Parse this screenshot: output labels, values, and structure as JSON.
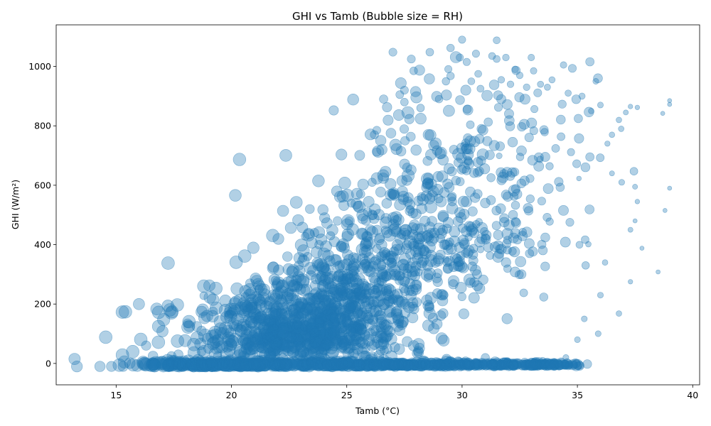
{
  "chart_data": {
    "type": "scatter",
    "title": "GHI vs Tamb (Bubble size = RH)",
    "xlabel": "Tamb (°C)",
    "ylabel": "GHI (W/m²)",
    "xlim": [
      12.4,
      40.3
    ],
    "ylim": [
      -72,
      1140
    ],
    "xticks": [
      15,
      20,
      25,
      30,
      35,
      40
    ],
    "yticks": [
      0,
      200,
      400,
      600,
      800,
      1000
    ],
    "grid": false,
    "legend": "none",
    "color": "#1f77b4",
    "point_opacity": 0.35,
    "size_encoding": "RH (relative humidity); larger bubbles = higher RH",
    "points_shown": 2400,
    "points": [
      [
        13.2,
        15,
        72
      ],
      [
        13.3,
        -10,
        68
      ],
      [
        14.3,
        -10,
        60
      ],
      [
        14.8,
        -10,
        58
      ],
      [
        15.3,
        -10,
        56
      ],
      [
        16.3,
        60,
        50
      ],
      [
        16.6,
        25,
        52
      ],
      [
        17.4,
        25,
        45
      ],
      [
        17.7,
        30,
        48
      ],
      [
        18.1,
        135,
        45
      ],
      [
        18.5,
        125,
        52
      ],
      [
        18.7,
        110,
        50
      ],
      [
        18.7,
        40,
        45
      ],
      [
        19.0,
        50,
        50
      ],
      [
        19.2,
        175,
        46
      ],
      [
        19.4,
        25,
        40
      ],
      [
        18.8,
        228,
        35
      ],
      [
        19.9,
        165,
        42
      ],
      [
        20.1,
        180,
        45
      ],
      [
        20.1,
        125,
        46
      ],
      [
        20.3,
        120,
        42
      ],
      [
        20.5,
        75,
        50
      ],
      [
        20.6,
        225,
        40
      ],
      [
        20.8,
        270,
        42
      ],
      [
        21.2,
        250,
        40
      ],
      [
        21.6,
        195,
        42
      ],
      [
        21.9,
        280,
        38
      ],
      [
        22.0,
        195,
        40
      ],
      [
        22.5,
        240,
        42
      ],
      [
        22.9,
        260,
        40
      ],
      [
        23.1,
        355,
        38
      ],
      [
        23.3,
        360,
        40
      ],
      [
        23.4,
        520,
        45
      ],
      [
        23.2,
        428,
        35
      ],
      [
        23.6,
        440,
        42
      ],
      [
        23.8,
        400,
        42
      ],
      [
        24.3,
        430,
        40
      ],
      [
        24.6,
        480,
        42
      ],
      [
        25.1,
        480,
        38
      ],
      [
        25.2,
        540,
        38
      ],
      [
        25.6,
        570,
        40
      ],
      [
        25.9,
        510,
        40
      ],
      [
        26.1,
        610,
        38
      ],
      [
        26.2,
        770,
        38
      ],
      [
        26.3,
        785,
        36
      ],
      [
        26.3,
        712,
        40
      ],
      [
        26.6,
        890,
        40
      ],
      [
        27.0,
        1048,
        36
      ],
      [
        27.3,
        905,
        35
      ],
      [
        27.5,
        920,
        36
      ],
      [
        27.5,
        880,
        34
      ],
      [
        27.8,
        1025,
        36
      ],
      [
        27.9,
        985,
        34
      ],
      [
        28.2,
        860,
        34
      ],
      [
        28.6,
        1048,
        34
      ],
      [
        29.0,
        890,
        32
      ],
      [
        29.3,
        950,
        32
      ],
      [
        29.5,
        1062,
        32
      ],
      [
        29.5,
        968,
        32
      ],
      [
        29.9,
        1030,
        30
      ],
      [
        30.0,
        1090,
        30
      ],
      [
        30.2,
        1015,
        30
      ],
      [
        30.4,
        950,
        28
      ],
      [
        30.6,
        1043,
        30
      ],
      [
        30.7,
        975,
        28
      ],
      [
        30.8,
        925,
        28
      ],
      [
        31.3,
        1035,
        28
      ],
      [
        31.5,
        1088,
        28
      ],
      [
        31.5,
        1025,
        28
      ],
      [
        31.7,
        955,
        26
      ],
      [
        31.9,
        1030,
        26
      ],
      [
        32.1,
        940,
        26
      ],
      [
        32.3,
        990,
        26
      ],
      [
        32.5,
        970,
        26
      ],
      [
        32.8,
        930,
        26
      ],
      [
        33.0,
        1030,
        24
      ],
      [
        33.1,
        985,
        24
      ],
      [
        33.4,
        940,
        22
      ],
      [
        33.7,
        930,
        22
      ],
      [
        33.9,
        955,
        22
      ],
      [
        34.4,
        1005,
        24
      ],
      [
        34.6,
        910,
        22
      ],
      [
        35.2,
        900,
        22
      ],
      [
        35.8,
        950,
        20
      ],
      [
        36.0,
        870,
        20
      ],
      [
        35.6,
        850,
        18
      ],
      [
        36.5,
        770,
        18
      ],
      [
        36.8,
        820,
        18
      ],
      [
        36.9,
        790,
        18
      ],
      [
        37.1,
        845,
        14
      ],
      [
        37.3,
        865,
        12
      ],
      [
        37.6,
        862,
        12
      ],
      [
        37.5,
        595,
        14
      ],
      [
        37.6,
        545,
        12
      ],
      [
        37.5,
        480,
        10
      ],
      [
        37.8,
        388,
        10
      ],
      [
        37.3,
        275,
        12
      ],
      [
        38.5,
        308,
        10
      ],
      [
        38.7,
        842,
        10
      ],
      [
        39.0,
        885,
        10
      ],
      [
        39.0,
        872,
        10
      ],
      [
        38.8,
        515,
        10
      ],
      [
        39.0,
        590,
        10
      ],
      [
        37.3,
        450,
        14
      ],
      [
        36.8,
        168,
        18
      ],
      [
        36.3,
        740,
        16
      ],
      [
        36.5,
        640,
        14
      ],
      [
        36.2,
        340,
        18
      ],
      [
        36.0,
        230,
        20
      ],
      [
        35.9,
        100,
        20
      ],
      [
        35.3,
        150,
        20
      ],
      [
        35.0,
        80,
        20
      ],
      [
        34.5,
        20,
        20
      ],
      [
        34.0,
        5,
        22
      ],
      [
        33.5,
        10,
        22
      ]
    ]
  }
}
